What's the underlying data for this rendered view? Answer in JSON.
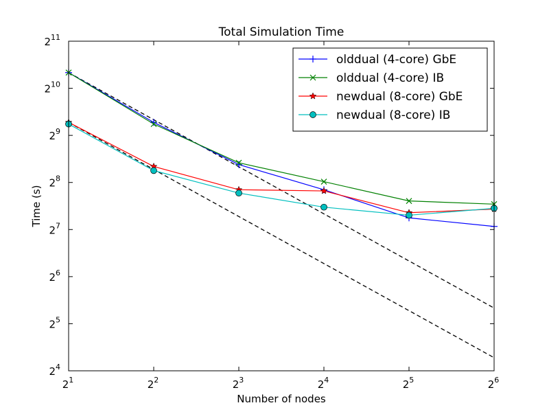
{
  "chart_data": {
    "type": "line",
    "title": "Total Simulation Time",
    "xlabel": "Number of nodes",
    "ylabel": "Time (s)",
    "xscale": "log2",
    "yscale": "log2",
    "xlim": [
      2,
      64
    ],
    "ylim": [
      16,
      2048
    ],
    "x_ticks": [
      {
        "value": 2,
        "base": "2",
        "exp": "1"
      },
      {
        "value": 4,
        "base": "2",
        "exp": "2"
      },
      {
        "value": 8,
        "base": "2",
        "exp": "3"
      },
      {
        "value": 16,
        "base": "2",
        "exp": "4"
      },
      {
        "value": 32,
        "base": "2",
        "exp": "5"
      },
      {
        "value": 64,
        "base": "2",
        "exp": "6"
      }
    ],
    "y_ticks": [
      {
        "value": 16,
        "base": "2",
        "exp": "4"
      },
      {
        "value": 32,
        "base": "2",
        "exp": "5"
      },
      {
        "value": 64,
        "base": "2",
        "exp": "6"
      },
      {
        "value": 128,
        "base": "2",
        "exp": "7"
      },
      {
        "value": 256,
        "base": "2",
        "exp": "8"
      },
      {
        "value": 512,
        "base": "2",
        "exp": "9"
      },
      {
        "value": 1024,
        "base": "2",
        "exp": "10"
      },
      {
        "value": 2048,
        "base": "2",
        "exp": "11"
      }
    ],
    "grid": false,
    "legend_position": "top-right",
    "x": [
      2,
      4,
      8,
      16,
      32,
      64
    ],
    "series": [
      {
        "name": "olddual (4-core) GbE",
        "color": "#0000ff",
        "marker": "plus",
        "values": [
          1290,
          620,
          333,
          230,
          152,
          134
        ]
      },
      {
        "name": "olddual (4-core) IB",
        "color": "#008000",
        "marker": "x",
        "values": [
          1290,
          605,
          342,
          259,
          195,
          186
        ]
      },
      {
        "name": "newdual (8-core) GbE",
        "color": "#ff0000",
        "marker": "star",
        "values": [
          620,
          324,
          230,
          226,
          164,
          173
        ]
      },
      {
        "name": "newdual (8-core) IB",
        "color": "#00bfbf",
        "marker": "circle",
        "values": [
          605,
          305,
          219,
          178,
          158,
          175
        ]
      }
    ],
    "reference_lines": [
      {
        "style": "dashed",
        "color": "#000000",
        "x": [
          2,
          64
        ],
        "values": [
          1290,
          40.3
        ]
      },
      {
        "style": "dashed",
        "color": "#000000",
        "x": [
          2,
          64
        ],
        "values": [
          620,
          19.4
        ]
      }
    ]
  }
}
